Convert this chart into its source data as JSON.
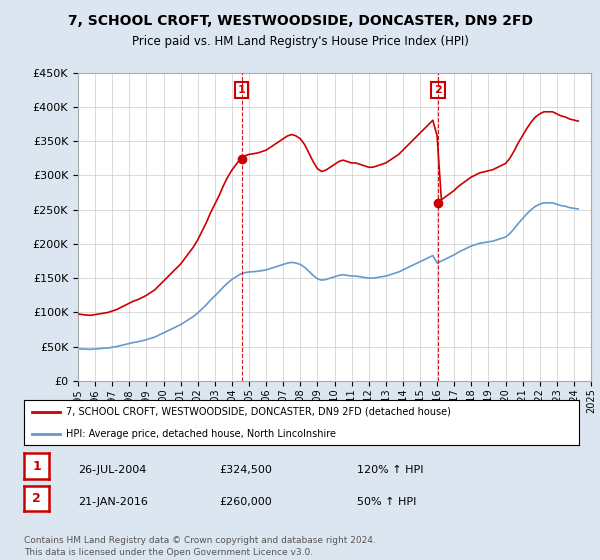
{
  "title": "7, SCHOOL CROFT, WESTWOODSIDE, DONCASTER, DN9 2FD",
  "subtitle": "Price paid vs. HM Land Registry's House Price Index (HPI)",
  "legend_line1": "7, SCHOOL CROFT, WESTWOODSIDE, DONCASTER, DN9 2FD (detached house)",
  "legend_line2": "HPI: Average price, detached house, North Lincolnshire",
  "footer": "Contains HM Land Registry data © Crown copyright and database right 2024.\nThis data is licensed under the Open Government Licence v3.0.",
  "sale1_label": "1",
  "sale1_date": "26-JUL-2004",
  "sale1_price": "£324,500",
  "sale1_hpi": "120% ↑ HPI",
  "sale1_x": 2004.57,
  "sale1_y": 324500,
  "sale2_label": "2",
  "sale2_date": "21-JAN-2016",
  "sale2_price": "£260,000",
  "sale2_hpi": "50% ↑ HPI",
  "sale2_x": 2016.05,
  "sale2_y": 260000,
  "ylim": [
    0,
    450000
  ],
  "xlim": [
    1995,
    2025
  ],
  "yticks": [
    0,
    50000,
    100000,
    150000,
    200000,
    250000,
    300000,
    350000,
    400000,
    450000
  ],
  "xticks": [
    1995,
    1996,
    1997,
    1998,
    1999,
    2000,
    2001,
    2002,
    2003,
    2004,
    2005,
    2006,
    2007,
    2008,
    2009,
    2010,
    2011,
    2012,
    2013,
    2014,
    2015,
    2016,
    2017,
    2018,
    2019,
    2020,
    2021,
    2022,
    2023,
    2024,
    2025
  ],
  "red_color": "#cc0000",
  "blue_color": "#6699cc",
  "background_color": "#dce6f0",
  "plot_bg": "#ffffff",
  "hpi_x": [
    1995.0,
    1995.25,
    1995.5,
    1995.75,
    1996.0,
    1996.25,
    1996.5,
    1996.75,
    1997.0,
    1997.25,
    1997.5,
    1997.75,
    1998.0,
    1998.25,
    1998.5,
    1998.75,
    1999.0,
    1999.25,
    1999.5,
    1999.75,
    2000.0,
    2000.25,
    2000.5,
    2000.75,
    2001.0,
    2001.25,
    2001.5,
    2001.75,
    2002.0,
    2002.25,
    2002.5,
    2002.75,
    2003.0,
    2003.25,
    2003.5,
    2003.75,
    2004.0,
    2004.25,
    2004.5,
    2004.75,
    2005.0,
    2005.25,
    2005.5,
    2005.75,
    2006.0,
    2006.25,
    2006.5,
    2006.75,
    2007.0,
    2007.25,
    2007.5,
    2007.75,
    2008.0,
    2008.25,
    2008.5,
    2008.75,
    2009.0,
    2009.25,
    2009.5,
    2009.75,
    2010.0,
    2010.25,
    2010.5,
    2010.75,
    2011.0,
    2011.25,
    2011.5,
    2011.75,
    2012.0,
    2012.25,
    2012.5,
    2012.75,
    2013.0,
    2013.25,
    2013.5,
    2013.75,
    2014.0,
    2014.25,
    2014.5,
    2014.75,
    2015.0,
    2015.25,
    2015.5,
    2015.75,
    2016.0,
    2016.25,
    2016.5,
    2016.75,
    2017.0,
    2017.25,
    2017.5,
    2017.75,
    2018.0,
    2018.25,
    2018.5,
    2018.75,
    2019.0,
    2019.25,
    2019.5,
    2019.75,
    2020.0,
    2020.25,
    2020.5,
    2020.75,
    2021.0,
    2021.25,
    2021.5,
    2021.75,
    2022.0,
    2022.25,
    2022.5,
    2022.75,
    2023.0,
    2023.25,
    2023.5,
    2023.75,
    2024.0,
    2024.25
  ],
  "hpi_y": [
    47000,
    46500,
    46200,
    46000,
    46500,
    47000,
    47500,
    48000,
    49000,
    50000,
    51500,
    53000,
    54500,
    56000,
    57000,
    58500,
    60000,
    62000,
    64000,
    67000,
    70000,
    73000,
    76000,
    79000,
    82000,
    86000,
    90000,
    94000,
    99000,
    105000,
    111000,
    118000,
    124000,
    130000,
    137000,
    143000,
    148000,
    152000,
    156000,
    158000,
    159000,
    159500,
    160000,
    161000,
    162000,
    164000,
    166000,
    168000,
    170000,
    172000,
    173000,
    172000,
    170000,
    166000,
    160000,
    154000,
    149000,
    147000,
    148000,
    150000,
    152000,
    154000,
    155000,
    154000,
    153000,
    153000,
    152000,
    151000,
    150000,
    150000,
    151000,
    152000,
    153000,
    155000,
    157000,
    159000,
    162000,
    165000,
    168000,
    171000,
    174000,
    177000,
    180000,
    183000,
    172000,
    175000,
    178000,
    181000,
    184000,
    188000,
    191000,
    194000,
    197000,
    199000,
    201000,
    202000,
    203000,
    204000,
    206000,
    208000,
    210000,
    215000,
    222000,
    230000,
    237000,
    244000,
    250000,
    255000,
    258000,
    260000,
    260000,
    260000,
    258000,
    256000,
    255000,
    253000,
    252000,
    251000
  ]
}
